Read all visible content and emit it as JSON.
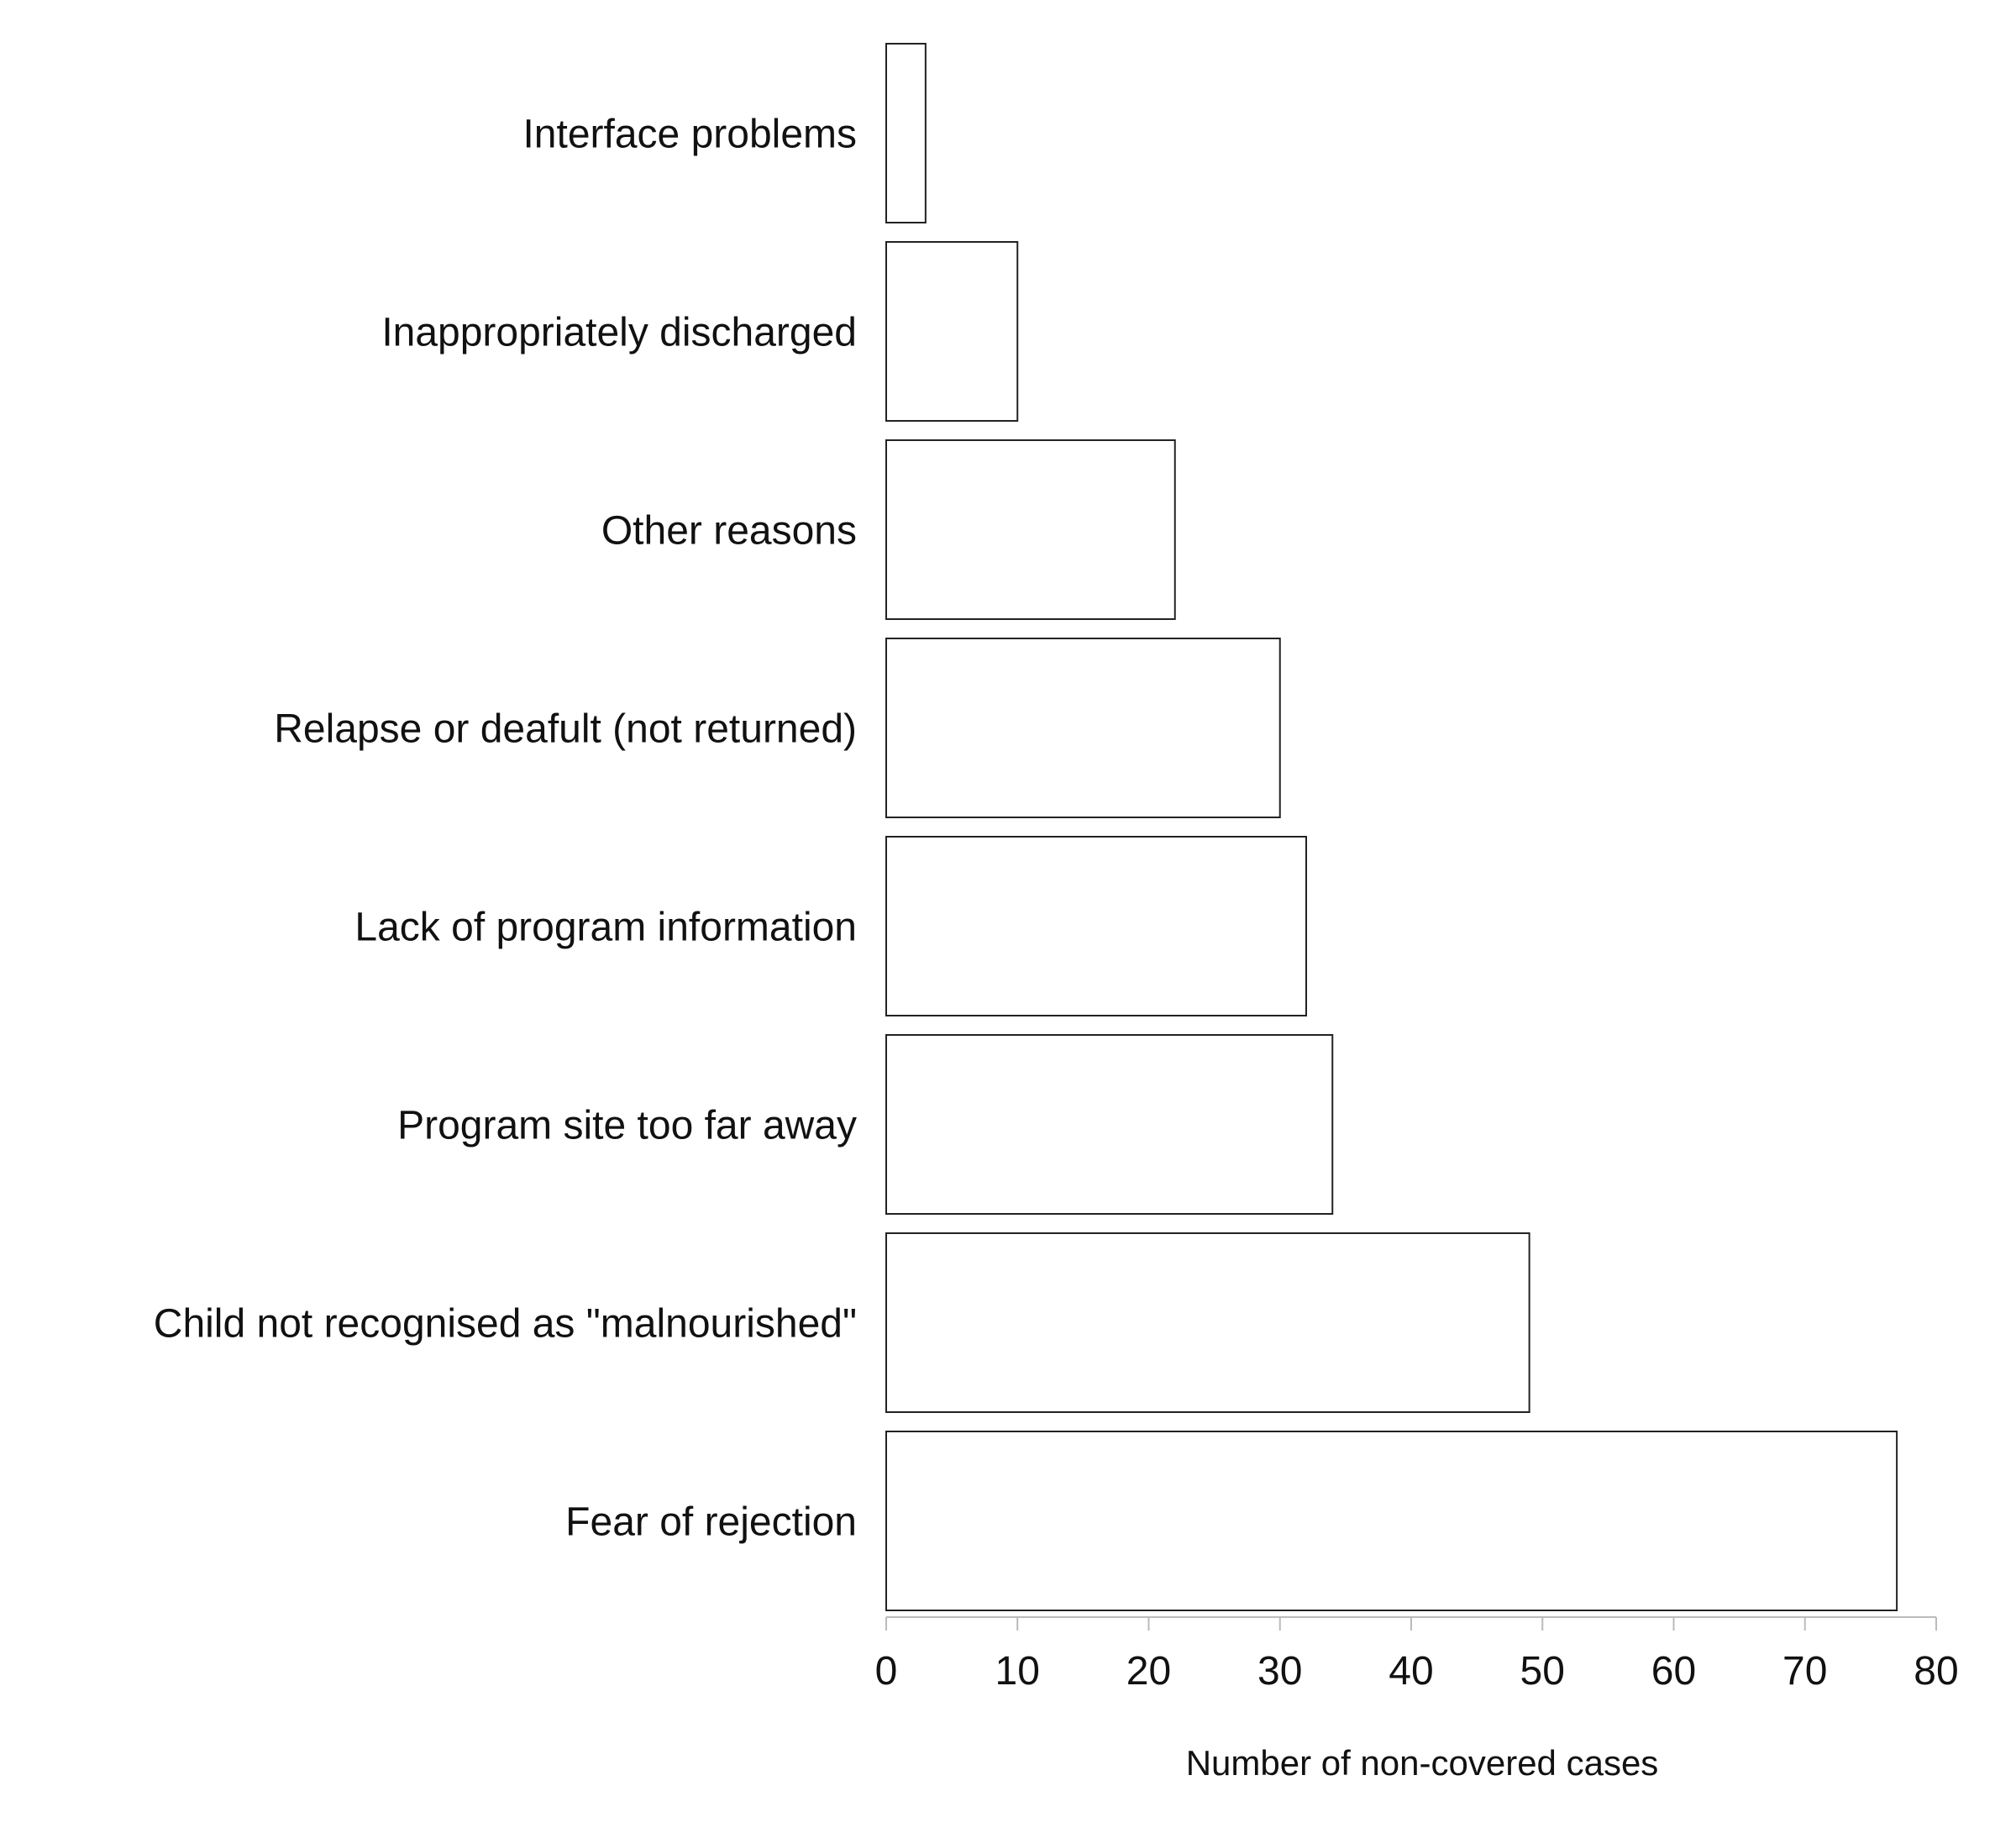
{
  "chart_data": {
    "type": "bar",
    "orientation": "horizontal",
    "categories": [
      "Interface problems",
      "Inappropriately discharged",
      "Other reasons",
      "Relapse or deafult (not returned)",
      "Lack of program information",
      "Program site too far away",
      "Child not recognised as \"malnourished\"",
      "Fear of rejection"
    ],
    "values": [
      3,
      10,
      22,
      30,
      32,
      34,
      49,
      77
    ],
    "title": "",
    "xlabel": "Number of non-covered cases",
    "ylabel": "",
    "xlim": [
      0,
      80
    ],
    "xticks": [
      "0",
      "10",
      "20",
      "30",
      "40",
      "50",
      "60",
      "70",
      "80"
    ],
    "grid": false,
    "bar_fill": "#ffffff",
    "bar_stroke": "#222222"
  }
}
